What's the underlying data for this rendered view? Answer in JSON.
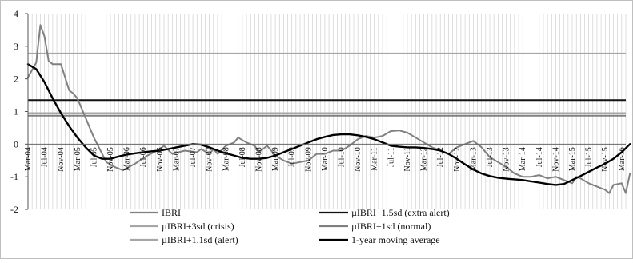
{
  "chart_data": {
    "type": "line",
    "title": "",
    "xlabel": "",
    "ylabel": "",
    "ylim": [
      -2,
      4
    ],
    "y_ticks": [
      -2,
      -1,
      0,
      1,
      2,
      3,
      4
    ],
    "grid": "vertical gridlines at each month",
    "legend_position": "bottom",
    "x_tick_labels": [
      "Mar-04",
      "Jul-04",
      "Nov-04",
      "Mar-05",
      "Jul-05",
      "Nov-05",
      "Mar-06",
      "Jul-06",
      "Nov-06",
      "Mar-07",
      "Jul-07",
      "Nov-07",
      "Mar-08",
      "Jul-08",
      "Nov-08",
      "Mar-09",
      "Jul-09",
      "Nov-09",
      "Mar-10",
      "Jul-10",
      "Nov-10",
      "Mar-11",
      "Jul-11",
      "Nov-11",
      "Mar-12",
      "Jul-12",
      "Nov-12",
      "Mar-13",
      "Jul-13",
      "Nov-13",
      "Mar-14",
      "Jul-14",
      "Nov-14",
      "Mar-15",
      "Jul-15",
      "Nov-15",
      "Mar-16"
    ],
    "x_start": "Mar-04",
    "months": 146,
    "series": [
      {
        "name": "IBRI",
        "color": "#808080",
        "width": 2,
        "points": [
          [
            "Mar-04",
            2.05
          ],
          [
            "May-04",
            2.5
          ],
          [
            "Jun-04",
            3.65
          ],
          [
            "Jul-04",
            3.3
          ],
          [
            "Aug-04",
            2.55
          ],
          [
            "Sep-04",
            2.45
          ],
          [
            "Nov-04",
            2.45
          ],
          [
            "Jan-05",
            1.65
          ],
          [
            "Feb-05",
            1.55
          ],
          [
            "Mar-05",
            1.4
          ],
          [
            "Jul-05",
            0.2
          ],
          [
            "Sep-05",
            -0.3
          ],
          [
            "Oct-05",
            -0.55
          ],
          [
            "Dec-05",
            -0.7
          ],
          [
            "Feb-06",
            -0.8
          ],
          [
            "May-06",
            -0.6
          ],
          [
            "Aug-06",
            -0.35
          ],
          [
            "Nov-06",
            -0.15
          ],
          [
            "Dec-06",
            -0.05
          ],
          [
            "Feb-07",
            -0.3
          ],
          [
            "May-07",
            -0.2
          ],
          [
            "Aug-07",
            -0.25
          ],
          [
            "Sep-07",
            -0.15
          ],
          [
            "Nov-07",
            -0.3
          ],
          [
            "Dec-07",
            -0.15
          ],
          [
            "Jan-08",
            -0.3
          ],
          [
            "Mar-08",
            -0.05
          ],
          [
            "May-08",
            0.05
          ],
          [
            "Jun-08",
            0.2
          ],
          [
            "Aug-08",
            0.05
          ],
          [
            "Oct-08",
            -0.05
          ],
          [
            "Nov-08",
            -0.25
          ],
          [
            "Jan-09",
            -0.05
          ],
          [
            "Mar-09",
            -0.35
          ],
          [
            "May-09",
            -0.5
          ],
          [
            "Jul-09",
            -0.6
          ],
          [
            "Sep-09",
            -0.55
          ],
          [
            "Nov-09",
            -0.5
          ],
          [
            "Jan-10",
            -0.3
          ],
          [
            "Mar-10",
            -0.3
          ],
          [
            "May-10",
            -0.2
          ],
          [
            "Jul-10",
            -0.2
          ],
          [
            "Sep-10",
            -0.05
          ],
          [
            "Nov-10",
            0.15
          ],
          [
            "Jan-11",
            0.25
          ],
          [
            "Mar-11",
            0.2
          ],
          [
            "May-11",
            0.25
          ],
          [
            "Jul-11",
            0.4
          ],
          [
            "Sep-11",
            0.42
          ],
          [
            "Nov-11",
            0.35
          ],
          [
            "Jan-12",
            0.2
          ],
          [
            "Mar-12",
            0.05
          ],
          [
            "May-12",
            -0.1
          ],
          [
            "Jul-12",
            -0.2
          ],
          [
            "Sep-12",
            -0.3
          ],
          [
            "Nov-12",
            -0.1
          ],
          [
            "Jan-13",
            0.0
          ],
          [
            "Mar-13",
            0.1
          ],
          [
            "May-13",
            -0.1
          ],
          [
            "Jul-13",
            -0.4
          ],
          [
            "Sep-13",
            -0.55
          ],
          [
            "Nov-13",
            -0.7
          ],
          [
            "Jan-14",
            -0.9
          ],
          [
            "Mar-14",
            -1.0
          ],
          [
            "May-14",
            -1.0
          ],
          [
            "Jul-14",
            -0.95
          ],
          [
            "Sep-14",
            -1.05
          ],
          [
            "Nov-14",
            -1.0
          ],
          [
            "Jan-15",
            -1.1
          ],
          [
            "Mar-15",
            -1.2
          ],
          [
            "Apr-15",
            -1.0
          ],
          [
            "May-15",
            -1.05
          ],
          [
            "Jul-15",
            -1.2
          ],
          [
            "Sep-15",
            -1.3
          ],
          [
            "Nov-15",
            -1.4
          ],
          [
            "Dec-15",
            -1.5
          ],
          [
            "Jan-16",
            -1.25
          ],
          [
            "Mar-16",
            -1.2
          ],
          [
            "Apr-16",
            -1.5
          ],
          [
            "May-16",
            -0.9
          ]
        ]
      },
      {
        "name": "µIBRI+3sd (crisis)",
        "color": "#a6a6a6",
        "width": 2,
        "constant": 2.78
      },
      {
        "name": "µIBRI+1.1sd (alert)",
        "color": "#a6a6a6",
        "width": 2,
        "constant": 0.95
      },
      {
        "name": "µIBRI+1.5sd (extra alert)",
        "color": "#111111",
        "width": 2,
        "constant": 1.35
      },
      {
        "name": "µIBRI+1sd (normal)",
        "color": "#808080",
        "width": 2,
        "constant": 0.87
      },
      {
        "name": "1-year moving average",
        "color": "#000000",
        "width": 2.4,
        "points": [
          [
            "Mar-04",
            2.45
          ],
          [
            "May-04",
            2.3
          ],
          [
            "Jul-04",
            1.9
          ],
          [
            "Sep-04",
            1.4
          ],
          [
            "Nov-04",
            0.95
          ],
          [
            "Jan-05",
            0.55
          ],
          [
            "Mar-05",
            0.2
          ],
          [
            "May-05",
            -0.1
          ],
          [
            "Jul-05",
            -0.35
          ],
          [
            "Sep-05",
            -0.45
          ],
          [
            "Nov-05",
            -0.45
          ],
          [
            "Jan-06",
            -0.38
          ],
          [
            "Mar-06",
            -0.32
          ],
          [
            "May-06",
            -0.28
          ],
          [
            "Jul-06",
            -0.25
          ],
          [
            "Sep-06",
            -0.22
          ],
          [
            "Nov-06",
            -0.2
          ],
          [
            "Jan-07",
            -0.15
          ],
          [
            "Mar-07",
            -0.1
          ],
          [
            "May-07",
            -0.05
          ],
          [
            "Jul-07",
            0.0
          ],
          [
            "Sep-07",
            -0.02
          ],
          [
            "Nov-07",
            -0.1
          ],
          [
            "Jan-08",
            -0.2
          ],
          [
            "Mar-08",
            -0.28
          ],
          [
            "May-08",
            -0.35
          ],
          [
            "Jul-08",
            -0.42
          ],
          [
            "Sep-08",
            -0.45
          ],
          [
            "Nov-08",
            -0.45
          ],
          [
            "Jan-09",
            -0.42
          ],
          [
            "Mar-09",
            -0.35
          ],
          [
            "May-09",
            -0.25
          ],
          [
            "Jul-09",
            -0.15
          ],
          [
            "Sep-09",
            -0.05
          ],
          [
            "Nov-09",
            0.05
          ],
          [
            "Jan-10",
            0.15
          ],
          [
            "Mar-10",
            0.22
          ],
          [
            "May-10",
            0.28
          ],
          [
            "Jul-10",
            0.3
          ],
          [
            "Sep-10",
            0.3
          ],
          [
            "Nov-10",
            0.27
          ],
          [
            "Jan-11",
            0.22
          ],
          [
            "Mar-11",
            0.15
          ],
          [
            "May-11",
            0.05
          ],
          [
            "Jul-11",
            -0.05
          ],
          [
            "Sep-11",
            -0.08
          ],
          [
            "Nov-11",
            -0.1
          ],
          [
            "Jan-12",
            -0.1
          ],
          [
            "Mar-12",
            -0.12
          ],
          [
            "May-12",
            -0.15
          ],
          [
            "Jul-12",
            -0.2
          ],
          [
            "Sep-12",
            -0.3
          ],
          [
            "Nov-12",
            -0.45
          ],
          [
            "Jan-13",
            -0.62
          ],
          [
            "Mar-13",
            -0.78
          ],
          [
            "May-13",
            -0.9
          ],
          [
            "Jul-13",
            -0.98
          ],
          [
            "Sep-13",
            -1.03
          ],
          [
            "Nov-13",
            -1.06
          ],
          [
            "Jan-14",
            -1.08
          ],
          [
            "Mar-14",
            -1.1
          ],
          [
            "May-14",
            -1.14
          ],
          [
            "Jul-14",
            -1.18
          ],
          [
            "Sep-14",
            -1.22
          ],
          [
            "Nov-14",
            -1.25
          ],
          [
            "Jan-15",
            -1.22
          ],
          [
            "Mar-15",
            -1.1
          ],
          [
            "May-15",
            -0.98
          ],
          [
            "Jul-15",
            -0.85
          ],
          [
            "Sep-15",
            -0.72
          ],
          [
            "Nov-15",
            -0.6
          ],
          [
            "Jan-16",
            -0.45
          ],
          [
            "Mar-16",
            -0.25
          ],
          [
            "May-16",
            0.0
          ]
        ]
      }
    ],
    "legend": [
      {
        "label": "IBRI",
        "color": "#808080",
        "column": 0,
        "row": 0
      },
      {
        "label": "µIBRI+3sd (crisis)",
        "color": "#a6a6a6",
        "column": 0,
        "row": 1
      },
      {
        "label": "µIBRI+1.1sd (alert)",
        "color": "#a6a6a6",
        "column": 0,
        "row": 2
      },
      {
        "label": "µIBRI+1.5sd (extra alert)",
        "color": "#111111",
        "column": 1,
        "row": 0
      },
      {
        "label": "µIBRI+1sd (normal)",
        "color": "#808080",
        "column": 1,
        "row": 1
      },
      {
        "label": "1-year moving average",
        "color": "#000000",
        "column": 1,
        "row": 2
      }
    ]
  }
}
